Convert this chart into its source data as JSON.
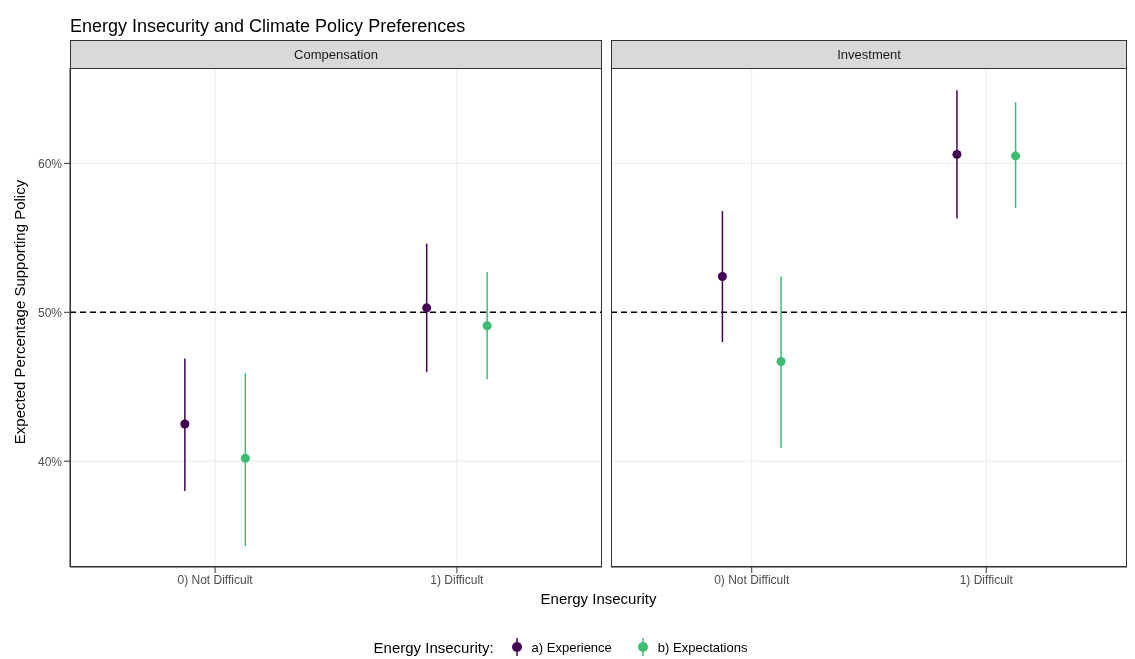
{
  "chart_data": [
    {
      "type": "scatter",
      "title": "Energy Insecurity and Climate Policy Preferences",
      "subtitle": "Compensation",
      "xlabel": "Energy Insecurity",
      "ylabel": "Expected Percentage Supporting Policy",
      "legend_title": "Energy Insecurity:",
      "legend": "bottom",
      "marker": "circle",
      "grid": true,
      "categories": [
        "0) Not Difficult",
        "1) Difficult"
      ],
      "ylim": [
        32.9,
        66.4
      ],
      "yticks": [
        {
          "value": 40,
          "label": "40%"
        },
        {
          "value": 50,
          "label": "50%"
        },
        {
          "value": 60,
          "label": "60%"
        }
      ],
      "ref_lines": [
        {
          "axis": "y",
          "value": 50,
          "color": "#000000",
          "line_style": "dashed"
        }
      ],
      "series": [
        {
          "name": "a) Experience",
          "color": "#440154",
          "values": [
            42.5,
            50.3
          ],
          "errors": [
            [
              38.0,
              46.9
            ],
            [
              46.0,
              54.6
            ]
          ]
        },
        {
          "name": "b) Expectations",
          "color": "#3fbc73",
          "values": [
            40.2,
            49.1
          ],
          "errors": [
            [
              34.3,
              45.9
            ],
            [
              45.5,
              52.7
            ]
          ]
        }
      ]
    },
    {
      "type": "scatter",
      "subtitle": "Investment",
      "marker": "circle",
      "grid": true,
      "tick_labels": "x",
      "categories": [
        "0) Not Difficult",
        "1) Difficult"
      ],
      "ylim": [
        32.9,
        66.4
      ],
      "yticks": [
        40,
        50,
        60
      ],
      "ref_lines": [
        {
          "axis": "y",
          "value": 50,
          "color": "#000000",
          "line_style": "dashed"
        }
      ],
      "series": [
        {
          "color": "#440154",
          "values": [
            52.4,
            60.6
          ],
          "errors": [
            [
              48.0,
              56.8
            ],
            [
              56.3,
              64.9
            ]
          ]
        },
        {
          "color": "#3fbc73",
          "values": [
            46.7,
            60.5
          ],
          "errors": [
            [
              40.9,
              52.4
            ],
            [
              57.0,
              64.1
            ]
          ]
        }
      ]
    }
  ]
}
